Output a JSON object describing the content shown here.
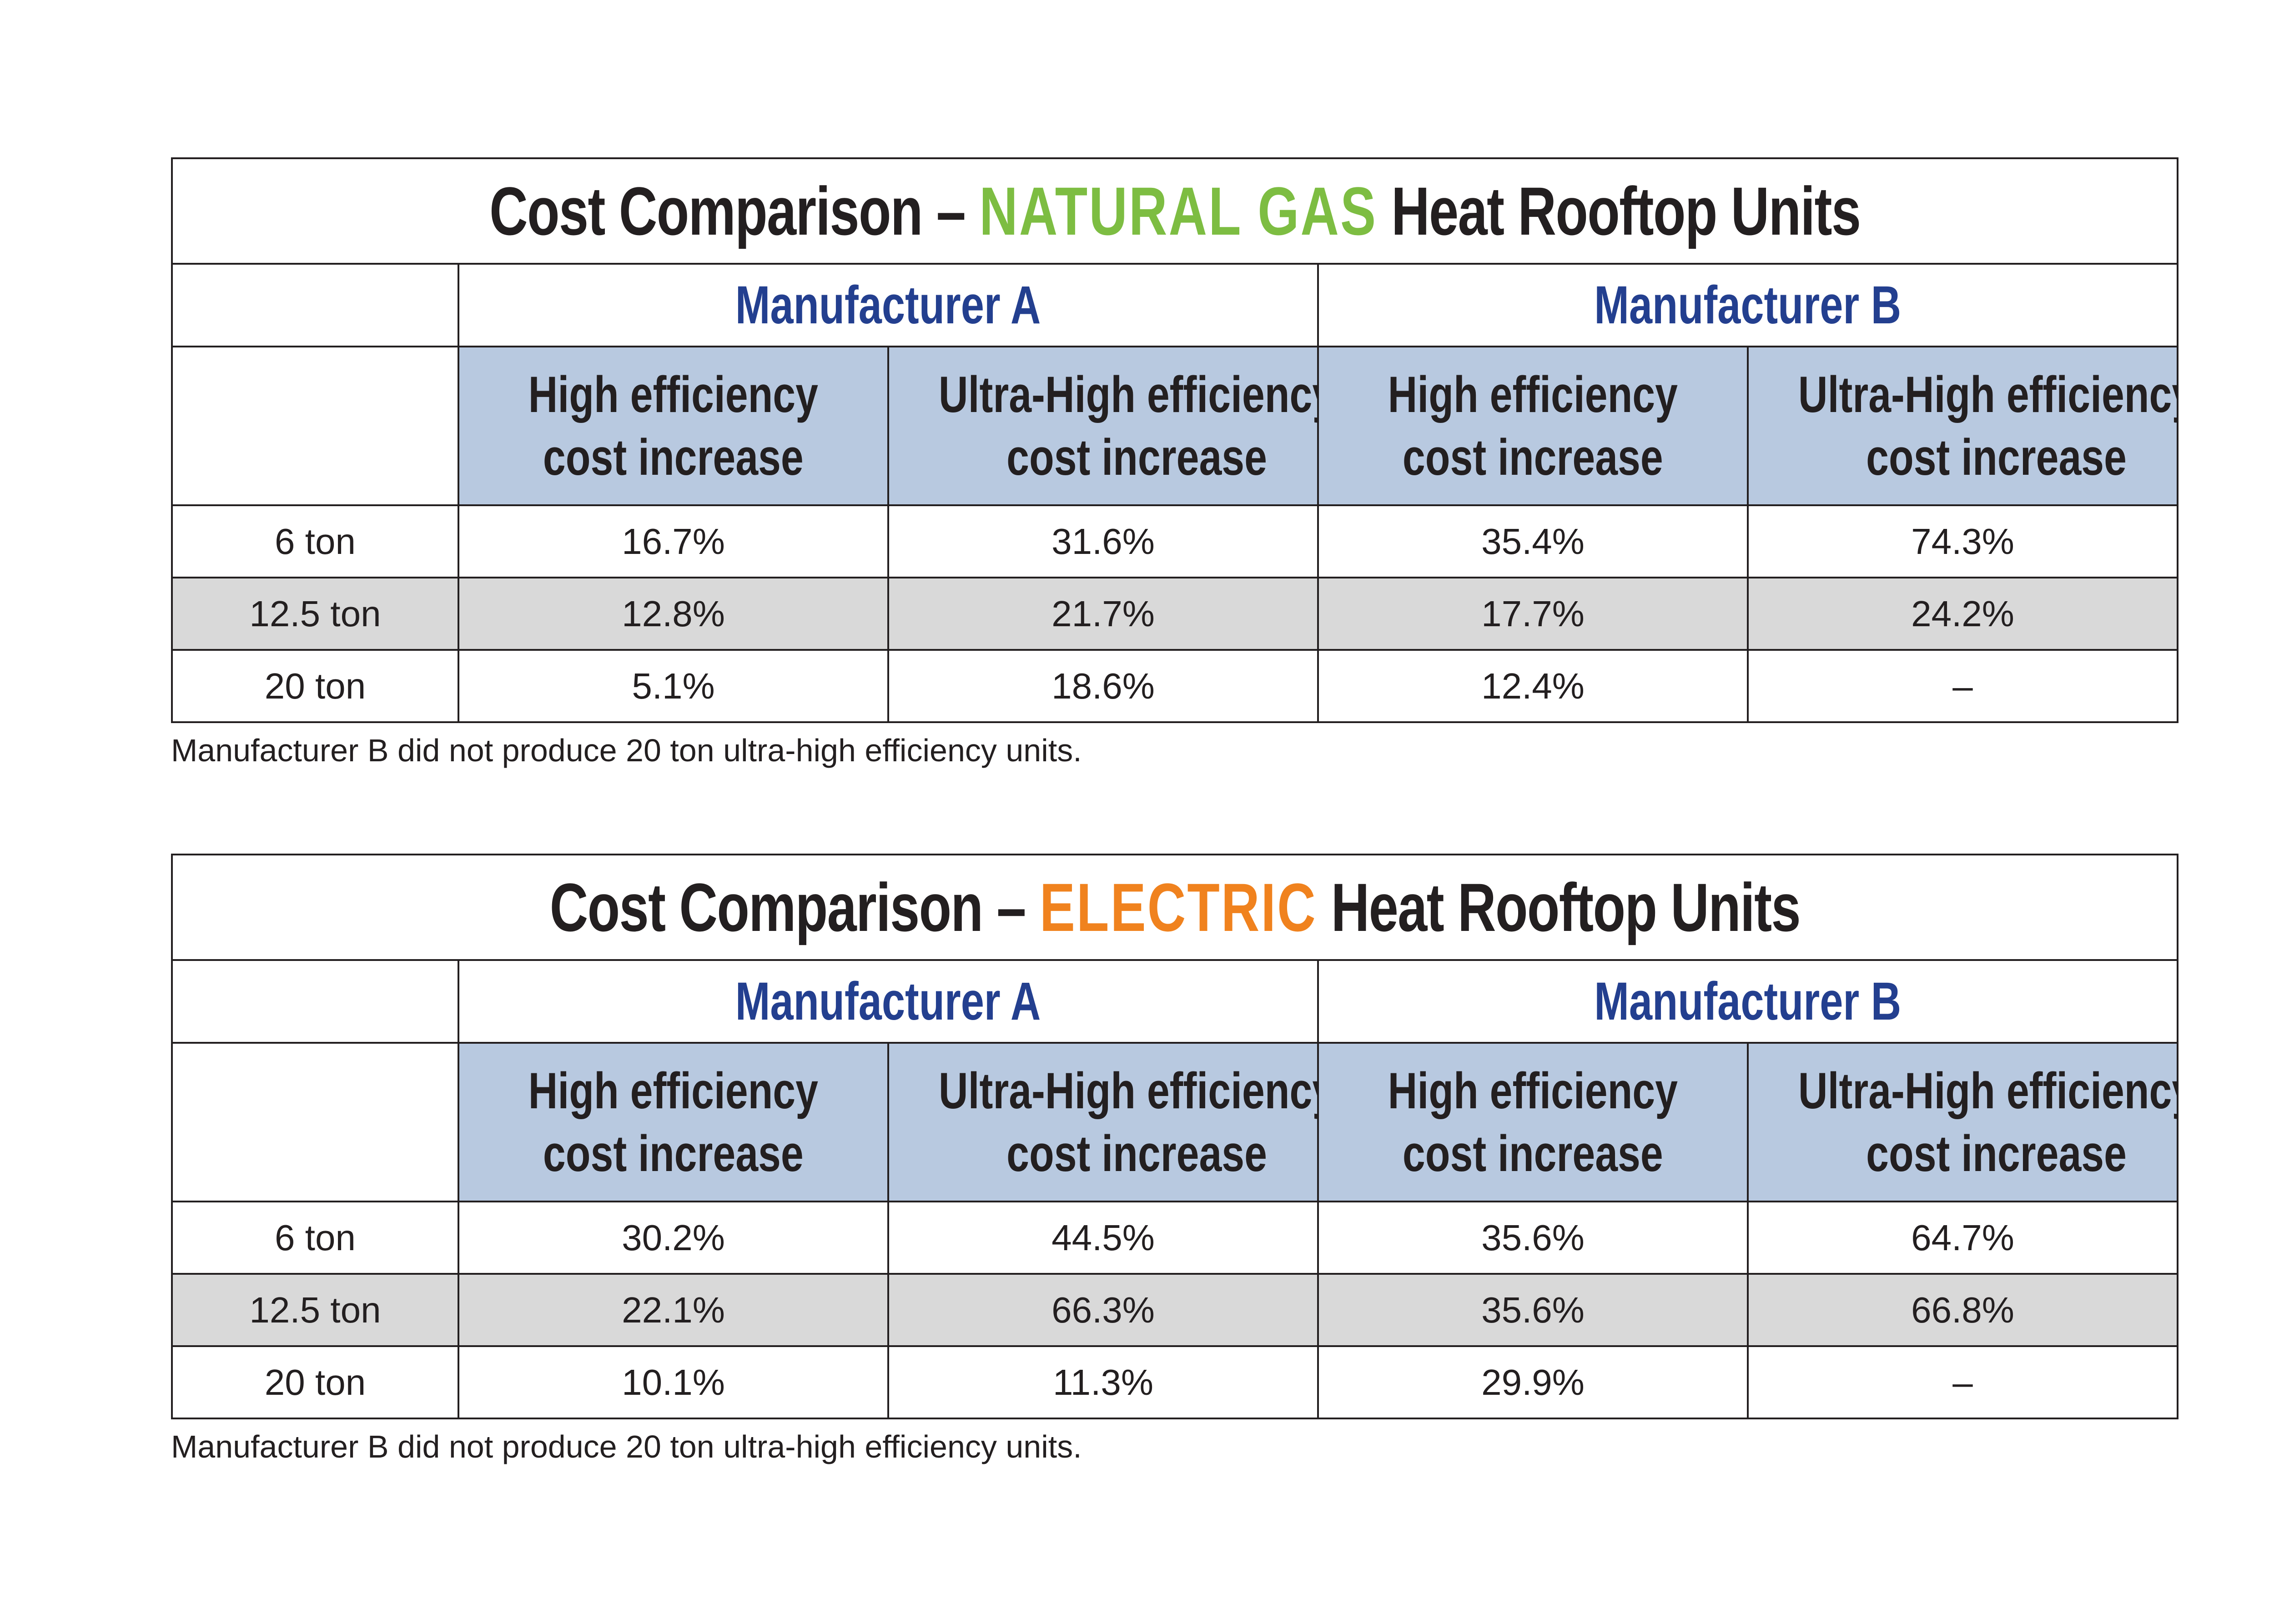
{
  "colors": {
    "natural_gas": "#7dbd42",
    "electric": "#f0821e",
    "manufacturer": "#233f8f",
    "header_fill": "#b8c9e0",
    "shaded_row": "#d9d9d9"
  },
  "chart_data": [
    {
      "type": "table",
      "title_prefix": "Cost Comparison –",
      "title_fuel": "NATURAL GAS",
      "title_suffix": "Heat Rooftop Units",
      "manufacturers": [
        "Manufacturer A",
        "Manufacturer B"
      ],
      "columns": [
        {
          "line1": "High efficiency",
          "line2": "cost increase"
        },
        {
          "line1": "Ultra-High efficiency",
          "line2": "cost increase"
        },
        {
          "line1": "High efficiency",
          "line2": "cost increase"
        },
        {
          "line1": "Ultra-High efficiency",
          "line2": "cost increase"
        }
      ],
      "rows": [
        {
          "label": "6 ton",
          "values": [
            "16.7%",
            "31.6%",
            "35.4%",
            "74.3%"
          ]
        },
        {
          "label": "12.5 ton",
          "values": [
            "12.8%",
            "21.7%",
            "17.7%",
            "24.2%"
          ]
        },
        {
          "label": "20 ton",
          "values": [
            "5.1%",
            "18.6%",
            "12.4%",
            "–"
          ]
        }
      ],
      "note": "Manufacturer B did not produce 20 ton ultra-high efficiency units."
    },
    {
      "type": "table",
      "title_prefix": "Cost Comparison –",
      "title_fuel": "ELECTRIC",
      "title_suffix": "Heat Rooftop Units",
      "manufacturers": [
        "Manufacturer A",
        "Manufacturer B"
      ],
      "columns": [
        {
          "line1": "High efficiency",
          "line2": "cost increase"
        },
        {
          "line1": "Ultra-High efficiency",
          "line2": "cost increase"
        },
        {
          "line1": "High efficiency",
          "line2": "cost increase"
        },
        {
          "line1": "Ultra-High efficiency",
          "line2": "cost increase"
        }
      ],
      "rows": [
        {
          "label": "6 ton",
          "values": [
            "30.2%",
            "44.5%",
            "35.6%",
            "64.7%"
          ]
        },
        {
          "label": "12.5 ton",
          "values": [
            "22.1%",
            "66.3%",
            "35.6%",
            "66.8%"
          ]
        },
        {
          "label": "20 ton",
          "values": [
            "10.1%",
            "11.3%",
            "29.9%",
            "–"
          ]
        }
      ],
      "note": "Manufacturer B did not produce 20 ton ultra-high efficiency units."
    }
  ]
}
